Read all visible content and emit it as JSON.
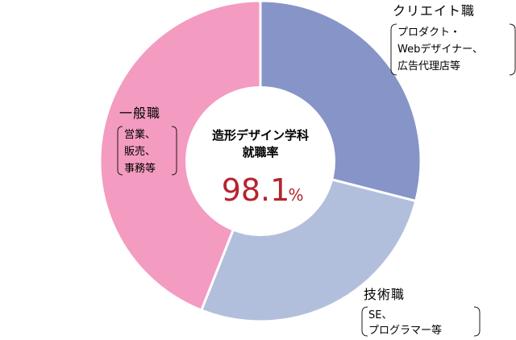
{
  "chart_data": {
    "type": "pie",
    "center": {
      "title_line1": "造形デザイン学科",
      "title_line2": "就職率",
      "value": "98.1",
      "unit": "%"
    },
    "slices": [
      {
        "label": "クリエイト職",
        "detail": [
          "プロダクト・",
          "Webデザイナー、",
          "広告代理店等"
        ],
        "value": 29,
        "color": "#8694c8"
      },
      {
        "label": "技術職",
        "detail": [
          "SE、",
          "プログラマー等"
        ],
        "value": 27,
        "color": "#b2bfdc"
      },
      {
        "label": "一般職",
        "detail": [
          "営業、",
          "販売、",
          "事務等"
        ],
        "value": 44,
        "color": "#f39bc0"
      }
    ]
  }
}
